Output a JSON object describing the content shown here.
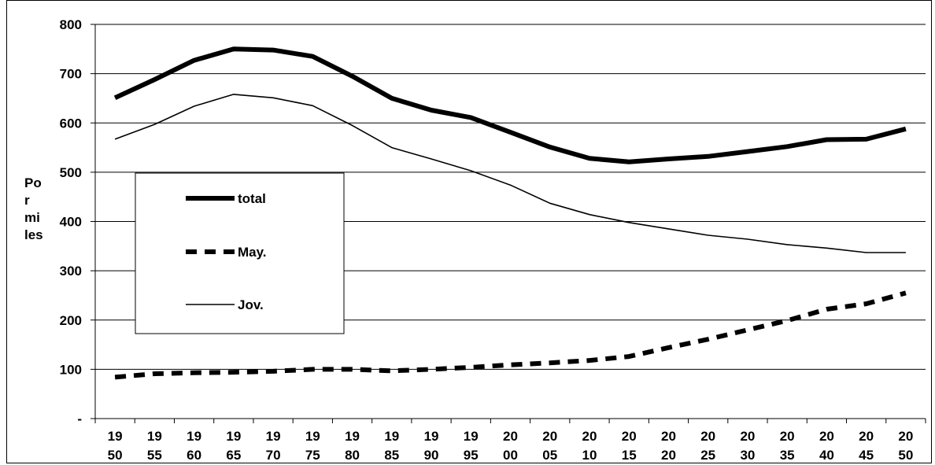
{
  "chart_data": {
    "type": "line",
    "title": "",
    "xlabel": "",
    "ylabel_lines": [
      "Po",
      "r",
      "mi",
      "les"
    ],
    "ylim": [
      0,
      800
    ],
    "y_ticks": [
      0,
      100,
      200,
      300,
      400,
      500,
      600,
      700,
      800
    ],
    "y_tick_labels": [
      "-",
      "100",
      "200",
      "300",
      "400",
      "500",
      "600",
      "700",
      "800"
    ],
    "grid": true,
    "legend_position": "left",
    "categories": [
      "1950",
      "1955",
      "1960",
      "1965",
      "1970",
      "1975",
      "1980",
      "1985",
      "1990",
      "1995",
      "2000",
      "2005",
      "2010",
      "2015",
      "2020",
      "2025",
      "2030",
      "2035",
      "2040",
      "2045",
      "2050"
    ],
    "category_labels": [
      [
        "19",
        "50"
      ],
      [
        "19",
        "55"
      ],
      [
        "19",
        "60"
      ],
      [
        "19",
        "65"
      ],
      [
        "19",
        "70"
      ],
      [
        "19",
        "75"
      ],
      [
        "19",
        "80"
      ],
      [
        "19",
        "85"
      ],
      [
        "19",
        "90"
      ],
      [
        "19",
        "95"
      ],
      [
        "20",
        "00"
      ],
      [
        "20",
        "05"
      ],
      [
        "20",
        "10"
      ],
      [
        "20",
        "15"
      ],
      [
        "20",
        "20"
      ],
      [
        "20",
        "25"
      ],
      [
        "20",
        "30"
      ],
      [
        "20",
        "35"
      ],
      [
        "20",
        "40"
      ],
      [
        "20",
        "45"
      ],
      [
        "20",
        "50"
      ]
    ],
    "series": [
      {
        "name": "total",
        "style": "thick",
        "color": "#000000",
        "values": [
          651,
          688,
          727,
          750,
          748,
          735,
          695,
          650,
          626,
          611,
          581,
          551,
          528,
          521,
          527,
          532,
          542,
          552,
          566,
          567,
          588
        ]
      },
      {
        "name": "May.",
        "style": "dashed",
        "color": "#000000",
        "values": [
          84,
          91,
          93,
          94,
          96,
          100,
          100,
          97,
          100,
          104,
          109,
          113,
          118,
          126,
          144,
          161,
          180,
          199,
          222,
          233,
          255
        ]
      },
      {
        "name": "Jov.",
        "style": "thin",
        "color": "#000000",
        "values": [
          567,
          597,
          634,
          658,
          651,
          635,
          595,
          550,
          527,
          503,
          474,
          437,
          414,
          398,
          385,
          372,
          364,
          353,
          346,
          337,
          337
        ]
      }
    ]
  }
}
